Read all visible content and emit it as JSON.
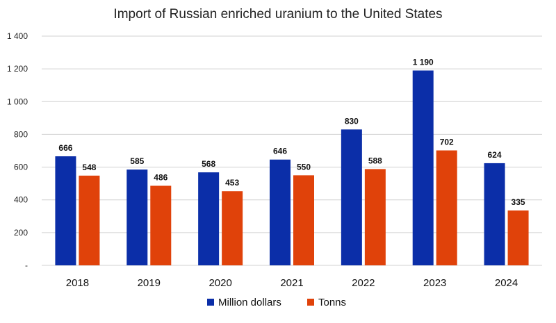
{
  "chart_data": {
    "type": "bar",
    "title": "Import of Russian enriched uranium to the United States",
    "categories": [
      "2018",
      "2019",
      "2020",
      "2021",
      "2022",
      "2023",
      "2024"
    ],
    "series": [
      {
        "name": "Million dollars",
        "color": "#0b2ea8",
        "values": [
          666,
          585,
          568,
          646,
          830,
          1190,
          624
        ],
        "labels": [
          "666",
          "585",
          "568",
          "646",
          "830",
          "1 190",
          "624"
        ]
      },
      {
        "name": "Tonns",
        "color": "#e0420a",
        "values": [
          548,
          486,
          453,
          550,
          588,
          702,
          335
        ],
        "labels": [
          "548",
          "486",
          "453",
          "550",
          "588",
          "702",
          "335"
        ]
      }
    ],
    "y_ticks": [
      0,
      200,
      400,
      600,
      800,
      1000,
      1200,
      1400
    ],
    "y_tick_labels": [
      "-",
      "200",
      "400",
      "600",
      "800",
      "1 000",
      "1 200",
      "1 400"
    ],
    "ylim": [
      0,
      1400
    ],
    "grid": true,
    "legend_position": "bottom-center"
  }
}
